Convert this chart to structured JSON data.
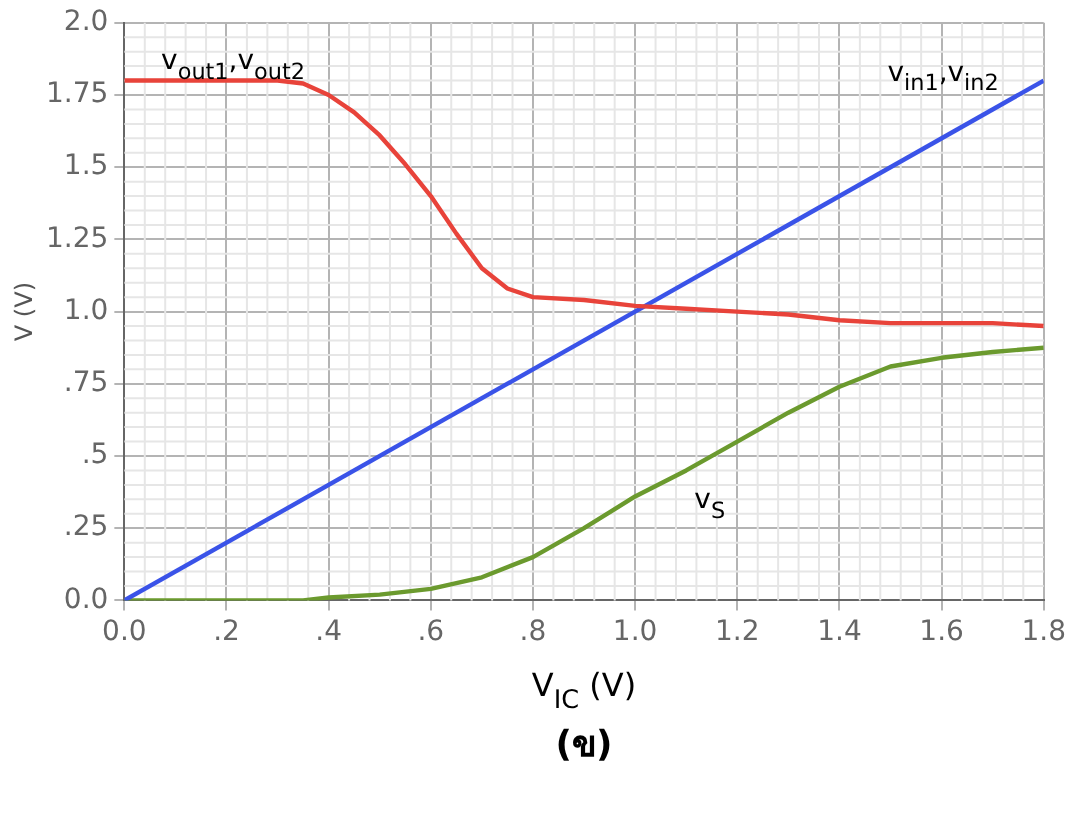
{
  "chart_data": {
    "type": "line",
    "xlabel": "V$_{IC}$ (V)",
    "ylabel": "V (V)",
    "annotations": [
      "(ข)"
    ],
    "xlim": [
      0,
      1.8
    ],
    "xticks": [
      {
        "value": 0,
        "label": "0.0"
      },
      {
        "value": 0.2,
        "label": ".2"
      },
      {
        "value": 0.4,
        "label": ".4"
      },
      {
        "value": 0.6,
        "label": ".6"
      },
      {
        "value": 0.8,
        "label": ".8"
      },
      {
        "value": 1.0,
        "label": "1.0"
      },
      {
        "value": 1.2,
        "label": "1.2"
      },
      {
        "value": 1.4,
        "label": "1.4"
      },
      {
        "value": 1.6,
        "label": "1.6"
      },
      {
        "value": 1.8,
        "label": "1.8"
      }
    ],
    "ylim": [
      0,
      2
    ],
    "yticks": [
      {
        "value": 0,
        "label": "0.0"
      },
      {
        "value": 0.25,
        "label": ".25"
      },
      {
        "value": 0.5,
        "label": ".5"
      },
      {
        "value": 0.75,
        "label": ".75"
      },
      {
        "value": 1.0,
        "label": "1.0"
      },
      1.25,
      1.5,
      1.75,
      {
        "value": 2.0,
        "label": "2.0"
      }
    ],
    "grid": true,
    "legend": false,
    "marker": "none",
    "line_style": "solid",
    "series": [
      {
        "name": "v$_{out1}$,v$_{out2}$",
        "color": "#e8433a",
        "x": [
          0,
          0.1,
          0.2,
          0.3,
          0.35,
          0.4,
          0.45,
          0.5,
          0.55,
          0.6,
          0.65,
          0.7,
          0.75,
          0.8,
          0.9,
          1.0,
          1.1,
          1.2,
          1.3,
          1.4,
          1.5,
          1.6,
          1.7,
          1.8
        ],
        "values": [
          1.8,
          1.8,
          1.8,
          1.8,
          1.79,
          1.75,
          1.69,
          1.61,
          1.51,
          1.4,
          1.27,
          1.15,
          1.08,
          1.05,
          1.04,
          1.02,
          1.01,
          1.0,
          0.99,
          0.97,
          0.96,
          0.96,
          0.96,
          0.95
        ]
      },
      {
        "name": "v$_{in1}$,v$_{in2}$",
        "color": "#3a53e8",
        "x": [
          0,
          1.8
        ],
        "values": [
          0,
          1.8
        ]
      },
      {
        "name": "v$_{S}$",
        "color": "#6b9a2e",
        "x": [
          0,
          0.3,
          0.35,
          0.4,
          0.5,
          0.6,
          0.7,
          0.8,
          0.9,
          1.0,
          1.1,
          1.2,
          1.3,
          1.4,
          1.5,
          1.6,
          1.7,
          1.8
        ],
        "values": [
          0,
          0,
          0,
          0.01,
          0.02,
          0.04,
          0.08,
          0.15,
          0.25,
          0.36,
          0.45,
          0.55,
          0.65,
          0.74,
          0.81,
          0.84,
          0.86,
          0.875
        ]
      }
    ]
  }
}
